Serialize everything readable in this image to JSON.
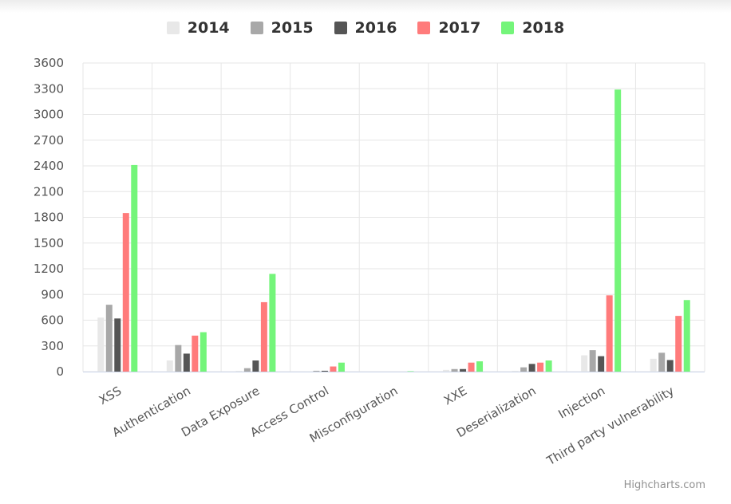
{
  "chart_data": {
    "type": "bar",
    "title": "",
    "xlabel": "",
    "ylabel": "",
    "categories": [
      "XSS",
      "Authentication",
      "Data Exposure",
      "Access Control",
      "Misconfiguration",
      "XXE",
      "Deserialization",
      "Injection",
      "Third party vulnerability"
    ],
    "series": [
      {
        "name": "2014",
        "color": "#e8e8e8",
        "values": [
          630,
          130,
          10,
          5,
          0,
          20,
          10,
          190,
          150
        ]
      },
      {
        "name": "2015",
        "color": "#a8a8a8",
        "values": [
          780,
          310,
          40,
          10,
          0,
          30,
          50,
          250,
          220
        ]
      },
      {
        "name": "2016",
        "color": "#555555",
        "values": [
          620,
          210,
          130,
          10,
          0,
          30,
          90,
          180,
          135
        ]
      },
      {
        "name": "2017",
        "color": "#ff7b7b",
        "values": [
          1850,
          420,
          810,
          60,
          0,
          105,
          105,
          890,
          650
        ]
      },
      {
        "name": "2018",
        "color": "#74f57a",
        "values": [
          2410,
          460,
          1140,
          105,
          5,
          120,
          130,
          3290,
          835
        ]
      }
    ],
    "ylim": [
      0,
      3600
    ],
    "yticks": [
      0,
      300,
      600,
      900,
      1200,
      1500,
      1800,
      2100,
      2400,
      2700,
      3000,
      3300,
      3600
    ],
    "grid": true,
    "legend": "top-center"
  },
  "credits": "Highcharts.com"
}
